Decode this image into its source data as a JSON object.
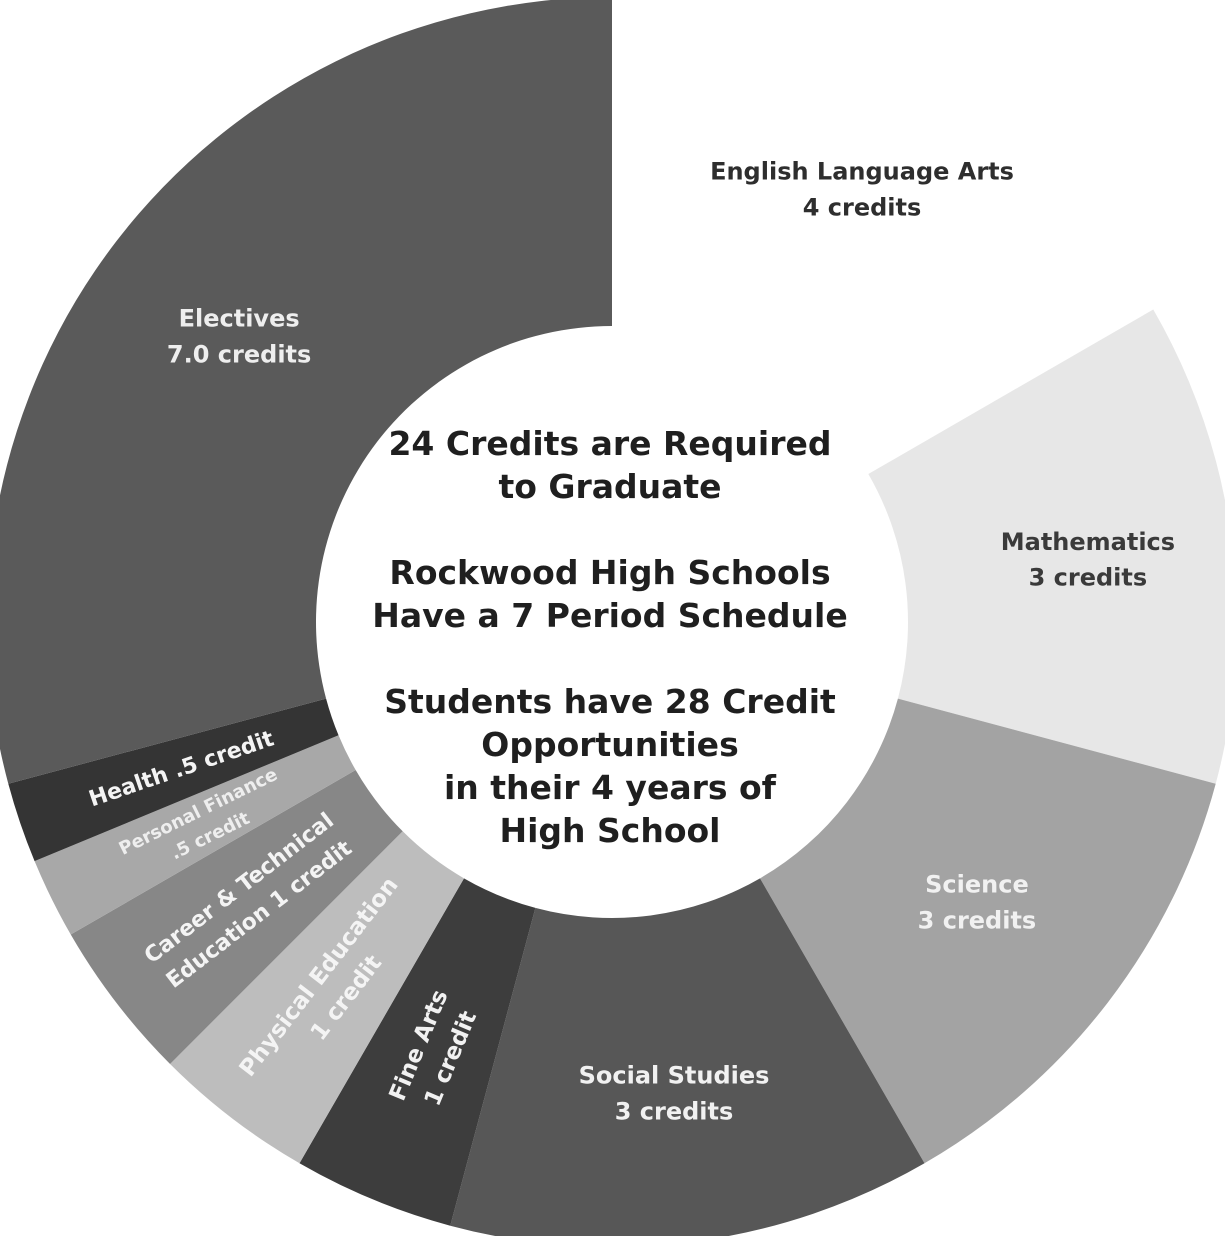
{
  "chart_data": {
    "type": "pie",
    "variant": "donut",
    "colors": {
      "English Language Arts": "#ffffff",
      "Mathematics": "#e7e7e7",
      "Science": "#a3a3a3",
      "Social Studies": "#575757",
      "Fine Arts": "#3d3d3d",
      "Physical Education": "#bdbdbd",
      "Career & Technical Education": "#878787",
      "Personal Finance": "#a8a8a8",
      "Health": "#343434",
      "Electives": "#5a5a5a"
    },
    "slices": [
      {
        "name": "English Language Arts",
        "value": 4,
        "label_lines": [
          "English Language Arts",
          "4 credits"
        ]
      },
      {
        "name": "Mathematics",
        "value": 3,
        "label_lines": [
          "Mathematics",
          "3 credits"
        ]
      },
      {
        "name": "Science",
        "value": 3,
        "label_lines": [
          "Science",
          "3 credits"
        ]
      },
      {
        "name": "Social Studies",
        "value": 3,
        "label_lines": [
          "Social Studies",
          "3 credits"
        ]
      },
      {
        "name": "Fine Arts",
        "value": 1,
        "label_lines": [
          "Fine Arts",
          "1 credit"
        ]
      },
      {
        "name": "Physical Education",
        "value": 1,
        "label_lines": [
          "Physical Education",
          "1 credit"
        ]
      },
      {
        "name": "Career & Technical Education",
        "value": 1,
        "label_lines": [
          "Career & Technical",
          "Education 1 credit"
        ]
      },
      {
        "name": "Personal Finance",
        "value": 0.5,
        "label_lines": [
          "Personal Finance",
          ".5 credit"
        ]
      },
      {
        "name": "Health",
        "value": 0.5,
        "label_lines": [
          "Health  .5 credit"
        ]
      },
      {
        "name": "Electives",
        "value": 7.0,
        "label_lines": [
          "Electives",
          "7.0 credits"
        ]
      }
    ],
    "center_text": [
      [
        "24 Credits are Required",
        "to Graduate"
      ],
      [
        "Rockwood High Schools",
        "Have a 7 Period Schedule"
      ],
      [
        "Students have 28 Credit",
        "Opportunities",
        "in their 4 years of",
        "High School"
      ]
    ]
  }
}
